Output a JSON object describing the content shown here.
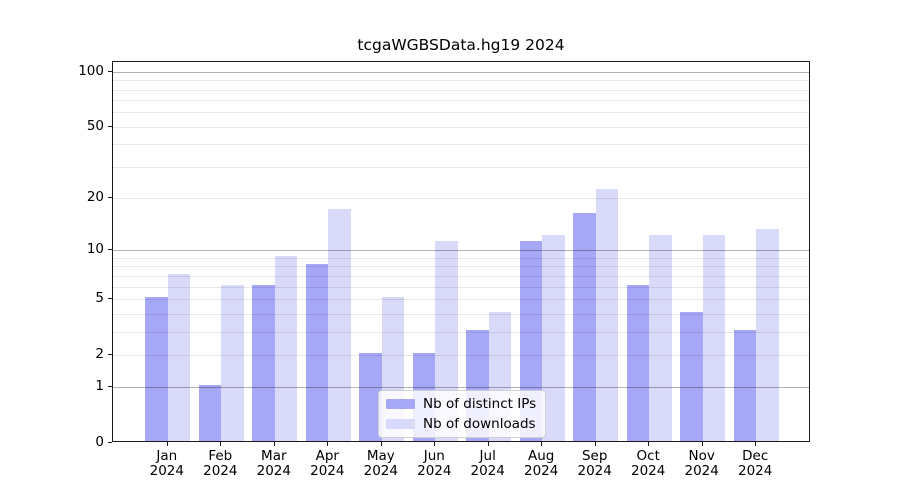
{
  "chart_data": {
    "type": "bar",
    "title": "tcgaWGBSData.hg19 2024",
    "categories": [
      "Jan 2024",
      "Feb 2024",
      "Mar 2024",
      "Apr 2024",
      "May 2024",
      "Jun 2024",
      "Jul 2024",
      "Aug 2024",
      "Sep 2024",
      "Oct 2024",
      "Nov 2024",
      "Dec 2024"
    ],
    "series": [
      {
        "name": "Nb of distinct IPs",
        "color": "#a7a7f8",
        "values": [
          5,
          1,
          6,
          8,
          2,
          2,
          3,
          11,
          16,
          6,
          4,
          3
        ]
      },
      {
        "name": "Nb of downloads",
        "color": "#d9d9fa",
        "values": [
          7,
          6,
          9,
          17,
          5,
          11,
          4,
          12,
          22,
          12,
          12,
          13
        ]
      }
    ],
    "xlabel": "",
    "ylabel": "",
    "yscale": "log1p",
    "yticks": [
      0,
      1,
      2,
      5,
      10,
      20,
      50,
      100
    ],
    "ytick_major": [
      1,
      10,
      100
    ],
    "ytick_minor": [
      2,
      3,
      4,
      5,
      6,
      7,
      8,
      9,
      20,
      30,
      40,
      50,
      60,
      70,
      80,
      90
    ],
    "ylim": [
      0,
      113
    ],
    "grid": "both",
    "legend_position": "lower center"
  },
  "colors": {
    "spine": "#1a1a1a",
    "background": "#ffffff"
  }
}
